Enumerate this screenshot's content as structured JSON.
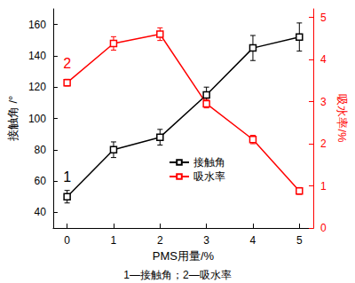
{
  "chart_data": {
    "type": "line",
    "x_label": "PMS用量/%",
    "y_label": "接触角 /°",
    "y2_label": "吸水率/%",
    "caption": "1—接触角；2—吸水率",
    "x": [
      0,
      1,
      2,
      3,
      4,
      5
    ],
    "xlim": [
      -0.3,
      5.3
    ],
    "xticks": [
      0,
      1,
      2,
      3,
      4,
      5
    ],
    "ylim": [
      30,
      170
    ],
    "yticks": [
      40,
      60,
      80,
      100,
      120,
      140,
      160
    ],
    "y2lim": [
      0,
      5.2
    ],
    "y2ticks": [
      0,
      1,
      2,
      3,
      4,
      5
    ],
    "grid": false,
    "legend": "center",
    "series": [
      {
        "name": "接触角",
        "color": "#000000",
        "marker": "square",
        "line_style": "solid",
        "axis": "y",
        "annotation": "1",
        "values": [
          50,
          80,
          88,
          115,
          145,
          152
        ],
        "errors": [
          4,
          5,
          5,
          5,
          8,
          9
        ]
      },
      {
        "name": "吸水率",
        "color": "#ff0000",
        "marker": "square",
        "line_style": "solid",
        "axis": "y2",
        "annotation": "2",
        "values": [
          3.45,
          4.38,
          4.6,
          2.95,
          2.1,
          0.88
        ],
        "errors": [
          0.08,
          0.16,
          0.15,
          0.1,
          0.1,
          0.08
        ]
      }
    ]
  }
}
